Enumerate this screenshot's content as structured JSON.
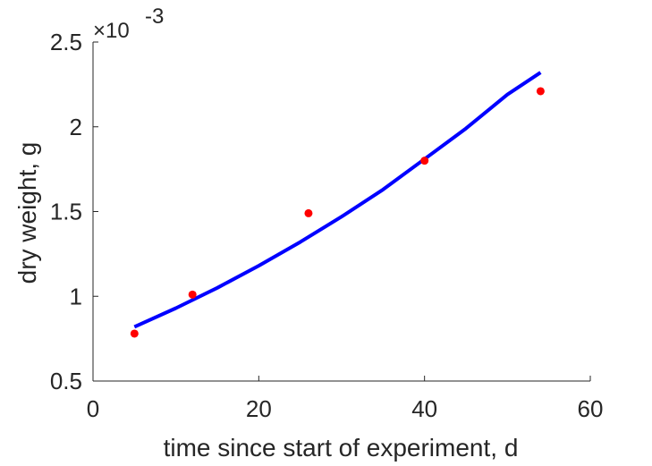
{
  "chart_data": {
    "type": "scatter",
    "xlabel": "time since start of experiment, d",
    "ylabel": "dry weight, g",
    "xlim": [
      0,
      60
    ],
    "ylim": [
      0.5,
      2.5
    ],
    "y_scale_multiplier": "×10",
    "y_scale_exponent": "-3",
    "xticks": [
      0,
      20,
      40,
      60
    ],
    "xtick_labels": [
      "0",
      "20",
      "40",
      "60"
    ],
    "yticks": [
      0.5,
      1,
      1.5,
      2,
      2.5
    ],
    "ytick_labels": [
      "0.5",
      "1",
      "1.5",
      "2",
      "2.5"
    ],
    "grid": false,
    "series": [
      {
        "kind": "points",
        "color": "#ff0000",
        "x": [
          5,
          12,
          26,
          40,
          54
        ],
        "y": [
          0.78,
          1.01,
          1.49,
          1.8,
          2.21
        ]
      },
      {
        "kind": "fit-line",
        "color": "#0000ff",
        "x": [
          5,
          10,
          15,
          20,
          25,
          30,
          35,
          40,
          45,
          50,
          54
        ],
        "y": [
          0.82,
          0.93,
          1.05,
          1.18,
          1.32,
          1.47,
          1.63,
          1.81,
          1.99,
          2.19,
          2.32
        ]
      }
    ]
  }
}
